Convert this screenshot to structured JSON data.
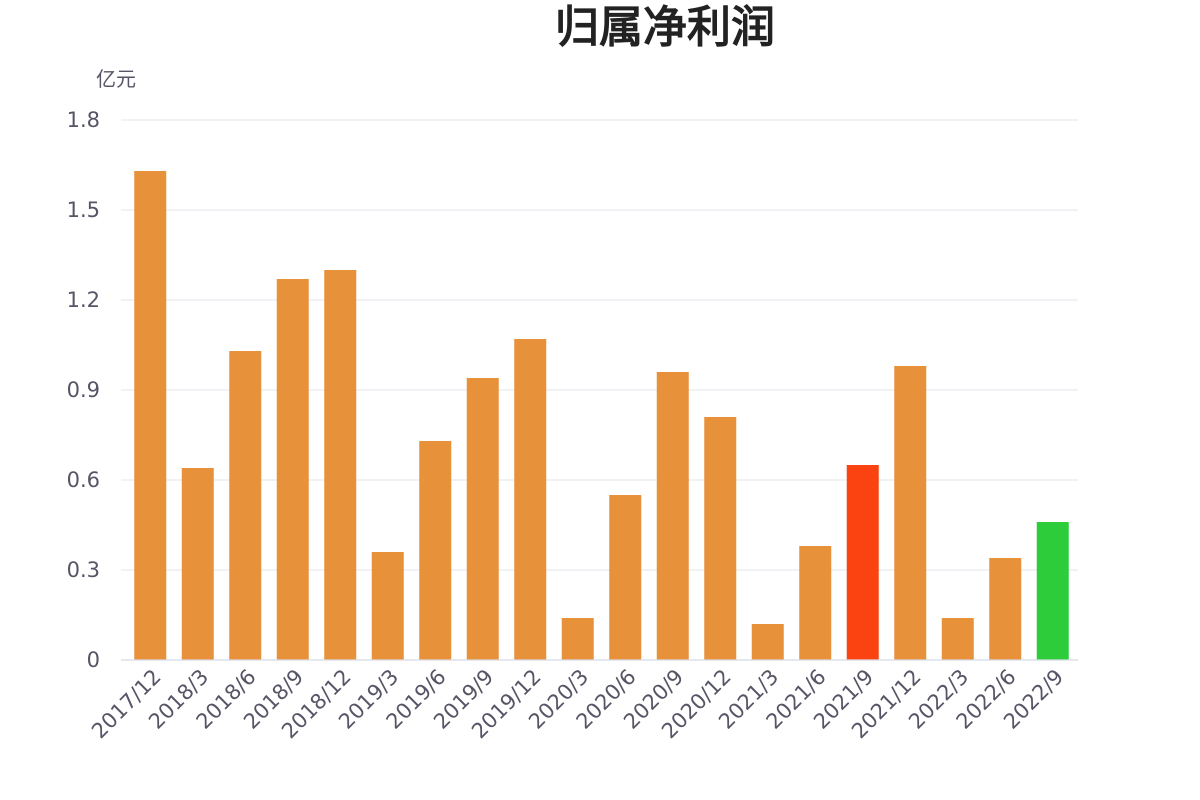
{
  "chart_data": {
    "type": "bar",
    "title": "归属净利润",
    "ylabel": "亿元",
    "xlabel": "",
    "ylim": [
      0,
      1.8
    ],
    "yticks": [
      "0",
      "0.3",
      "0.6",
      "0.9",
      "1.2",
      "1.5",
      "1.8"
    ],
    "grid": true,
    "categories": [
      "2017/12",
      "2018/3",
      "2018/6",
      "2018/9",
      "2018/12",
      "2019/3",
      "2019/6",
      "2019/9",
      "2019/12",
      "2020/3",
      "2020/6",
      "2020/9",
      "2020/12",
      "2021/3",
      "2021/6",
      "2021/9",
      "2021/12",
      "2022/3",
      "2022/6",
      "2022/9"
    ],
    "values": [
      1.63,
      0.64,
      1.03,
      1.27,
      1.3,
      0.36,
      0.73,
      0.94,
      1.07,
      0.14,
      0.55,
      0.96,
      0.81,
      0.12,
      0.38,
      0.65,
      0.98,
      0.14,
      0.34,
      0.46
    ],
    "colors": {
      "default": "#e8913b",
      "highlight_red": "#fa4311",
      "highlight_green": "#2dcc3a"
    },
    "bar_colors": [
      "default",
      "default",
      "default",
      "default",
      "default",
      "default",
      "default",
      "default",
      "default",
      "default",
      "default",
      "default",
      "default",
      "default",
      "default",
      "highlight_red",
      "default",
      "default",
      "default",
      "highlight_green"
    ]
  }
}
